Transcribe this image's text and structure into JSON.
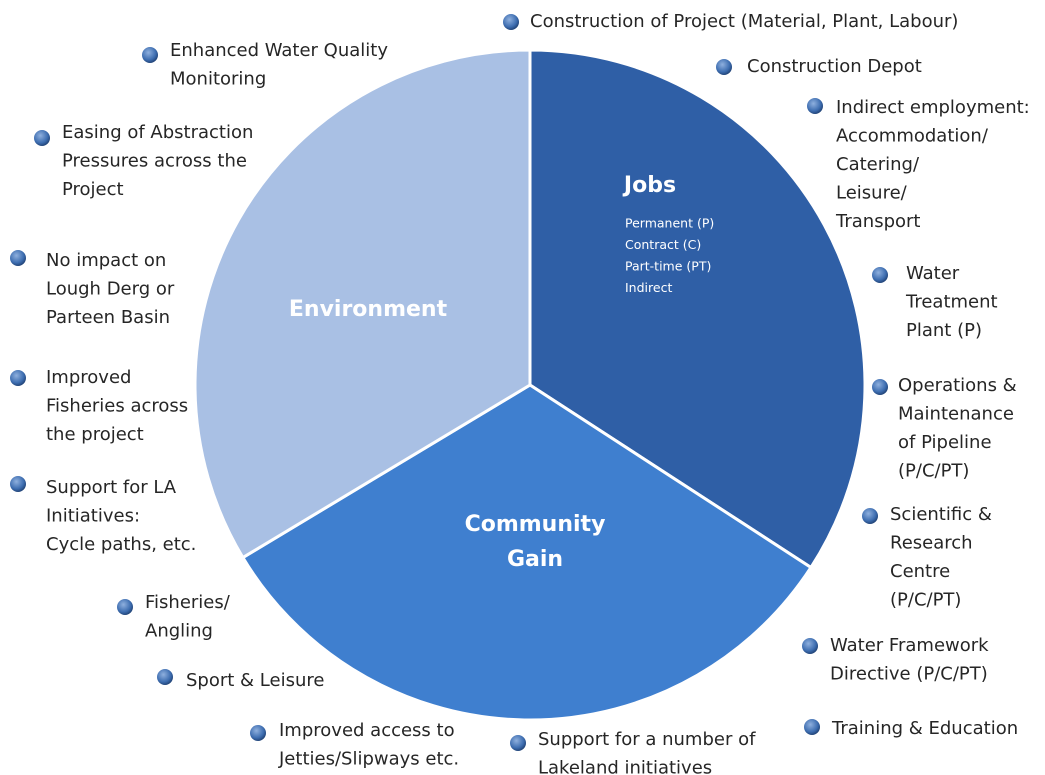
{
  "segments": [
    {
      "label": "Jobs",
      "sublines": [
        "Permanent (P)",
        "Contract (C)",
        "Part-time (PT)",
        "Indirect"
      ]
    },
    {
      "label": "Community Gain"
    },
    {
      "label": "Environment"
    }
  ],
  "items": [
    {
      "lines": [
        "Construction of Project (Material, Plant, Labour)"
      ]
    },
    {
      "lines": [
        "Construction Depot"
      ]
    },
    {
      "lines": [
        "Indirect employment:",
        "Accommodation/",
        "Catering/",
        "Leisure/",
        "Transport"
      ]
    },
    {
      "lines": [
        "Water",
        "Treatment",
        "Plant (P)"
      ]
    },
    {
      "lines": [
        "Operations &",
        "Maintenance",
        "of Pipeline",
        "(P/C/PT)"
      ]
    },
    {
      "lines": [
        "Scientific &",
        "Research",
        "Centre",
        "(P/C/PT)"
      ]
    },
    {
      "lines": [
        "Water Framework",
        "Directive (P/C/PT)"
      ]
    },
    {
      "lines": [
        "Training & Education"
      ]
    },
    {
      "lines": [
        "Support for a number of",
        "Lakeland initiatives"
      ]
    },
    {
      "lines": [
        "Improved access to",
        "Jetties/Slipways etc."
      ]
    },
    {
      "lines": [
        "Sport & Leisure"
      ]
    },
    {
      "lines": [
        "Fisheries/",
        "Angling"
      ]
    },
    {
      "lines": [
        "Support for LA",
        "Initiatives:",
        "Cycle paths, etc."
      ]
    },
    {
      "lines": [
        "Improved",
        "Fisheries across",
        "the project"
      ]
    },
    {
      "lines": [
        "No impact on",
        "Lough Derg or",
        "Parteen Basin"
      ]
    },
    {
      "lines": [
        "Easing of Abstraction",
        "Pressures across the",
        "Project"
      ]
    },
    {
      "lines": [
        "Enhanced Water Quality",
        "Monitoring"
      ]
    }
  ]
}
